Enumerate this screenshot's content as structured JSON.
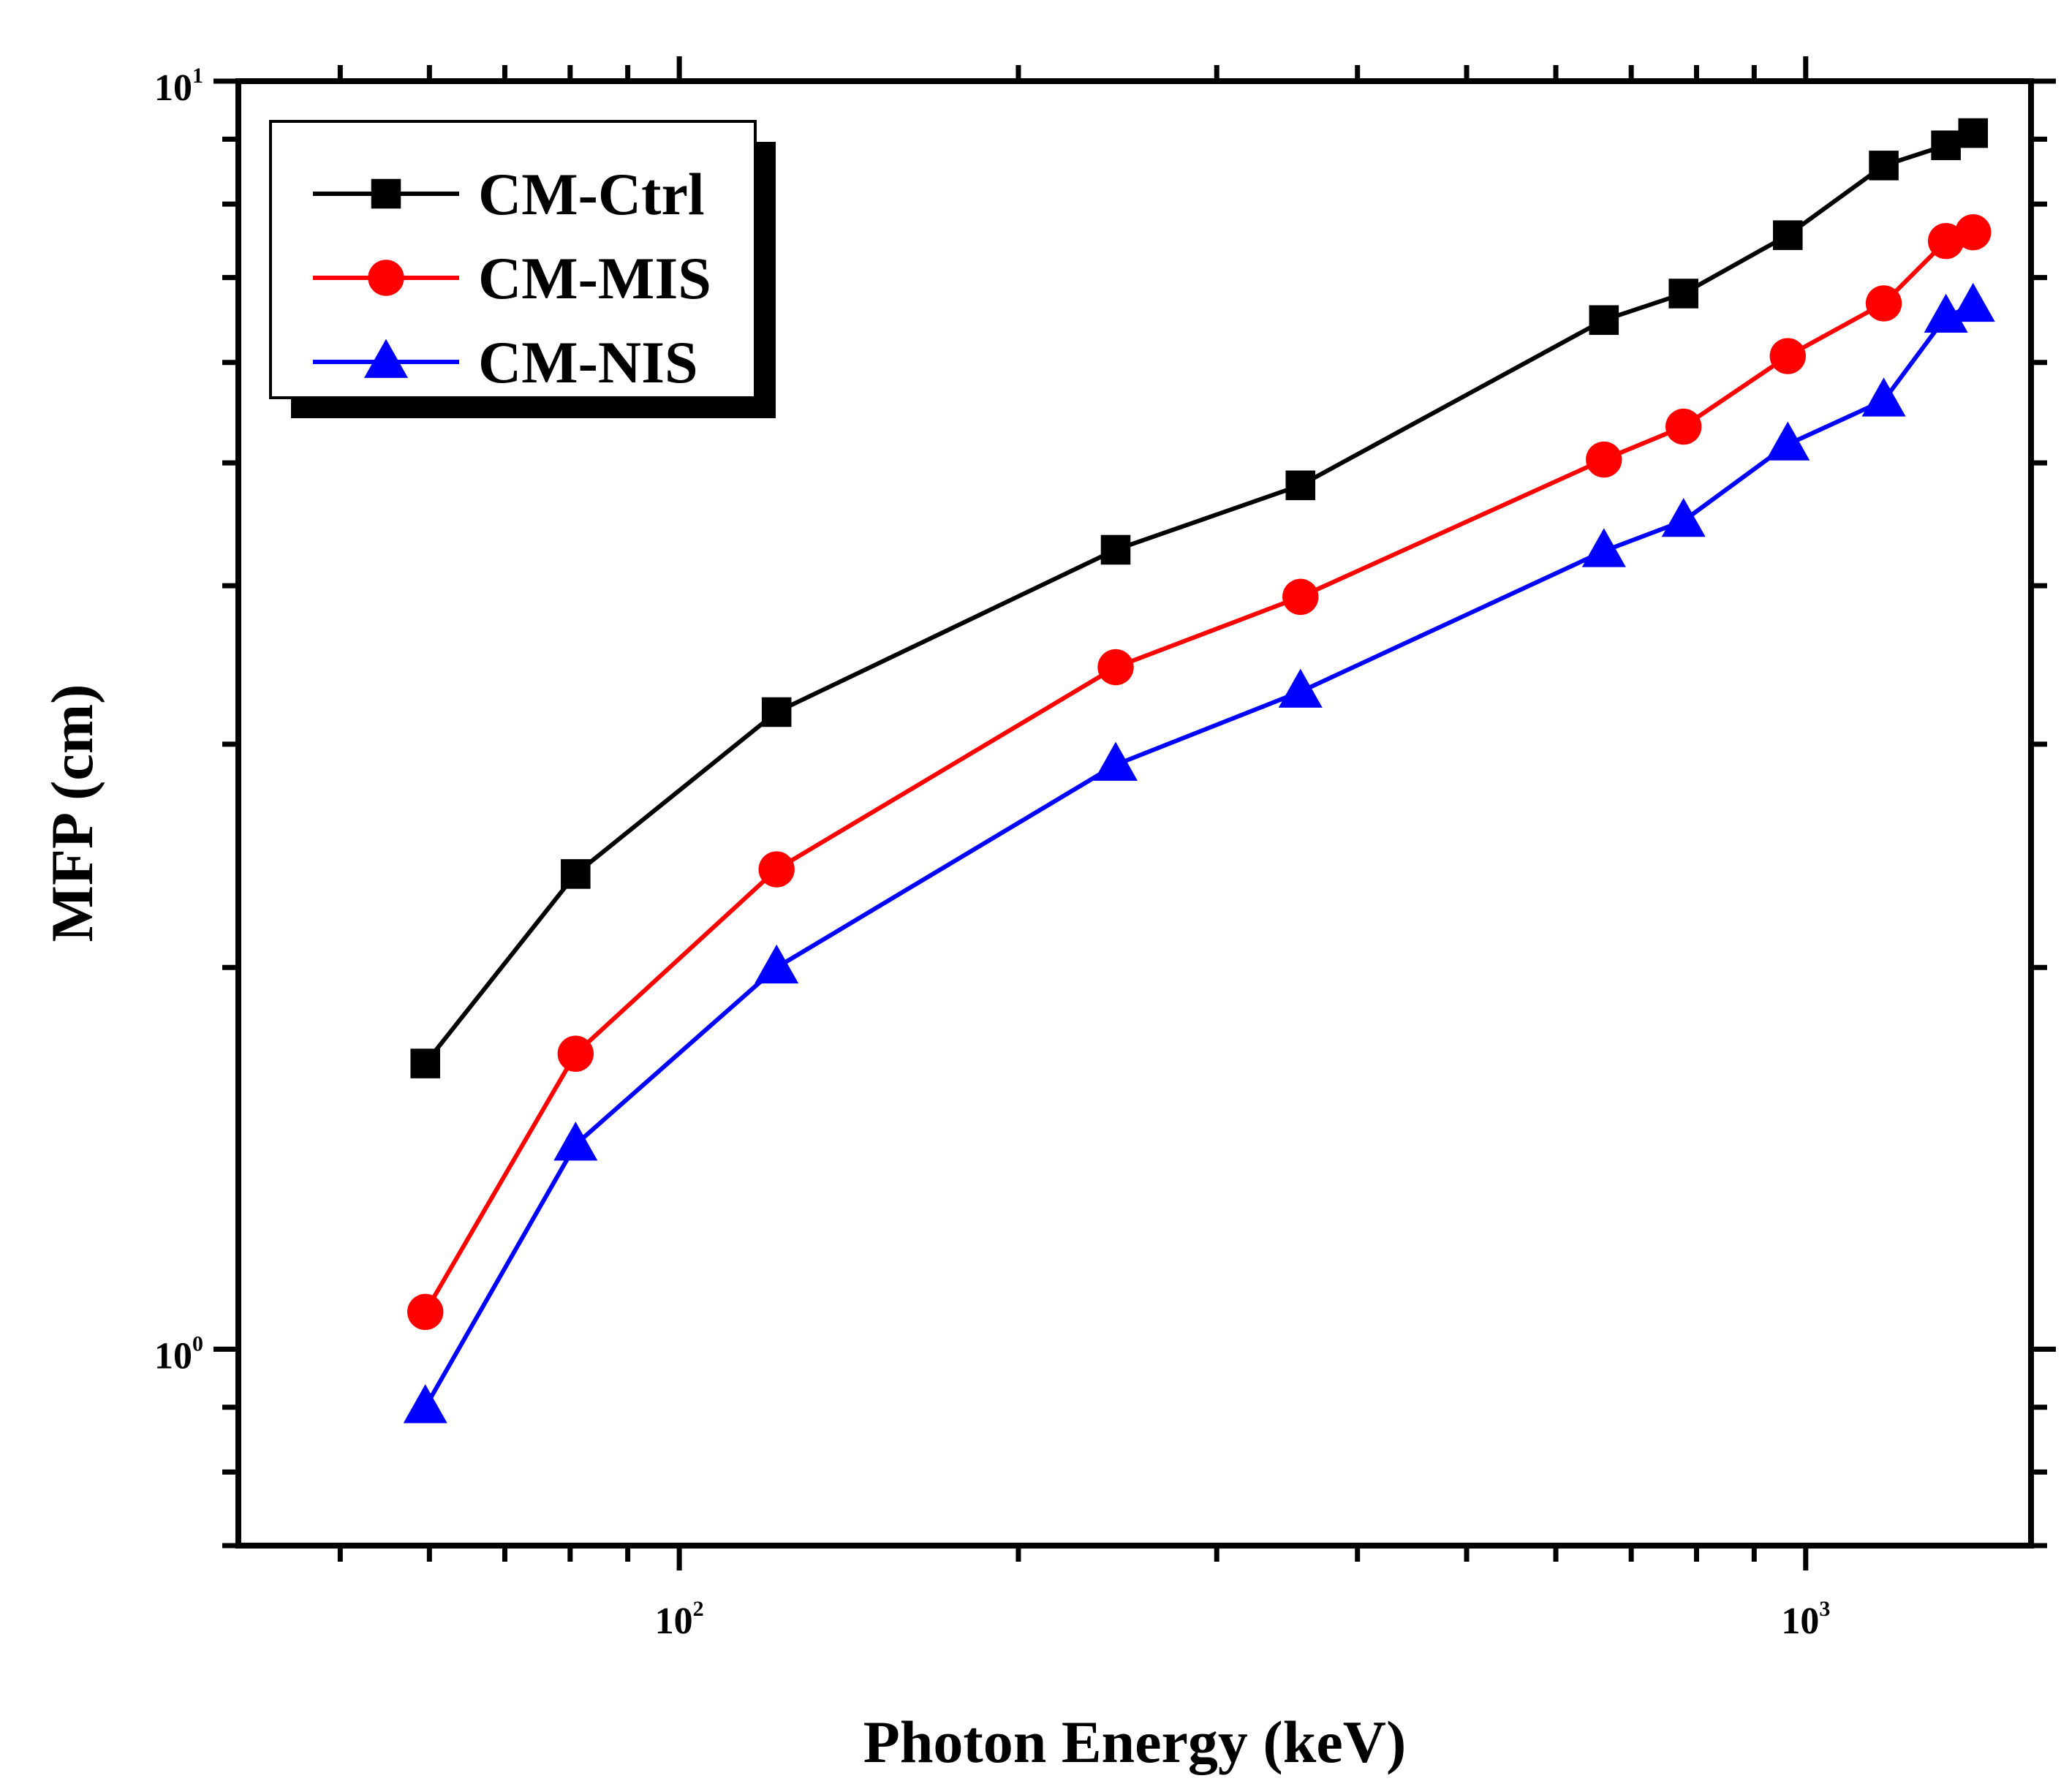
{
  "chart_data": {
    "type": "line",
    "title": "",
    "xlabel": "Photon Energy (keV)",
    "ylabel": "MFP (cm)",
    "xscale": "log",
    "yscale": "log",
    "xlim": [
      40.6,
      1585
    ],
    "ylim": [
      0.7,
      10
    ],
    "xticks": [
      {
        "base": "10",
        "exp": "2",
        "value": 100
      },
      {
        "base": "10",
        "exp": "3",
        "value": 1000
      }
    ],
    "yticks": [
      {
        "base": "10",
        "exp": "0",
        "value": 1
      },
      {
        "base": "10",
        "exp": "1",
        "value": 10
      }
    ],
    "legend_position": "top-left",
    "x": [
      59.5,
      80.9,
      122,
      244,
      356,
      662,
      779,
      964,
      1173,
      1332,
      1408
    ],
    "series": [
      {
        "name": "CM-Ctrl",
        "color": "#000000",
        "marker": "square",
        "values": [
          1.68,
          2.37,
          3.18,
          4.27,
          4.8,
          6.48,
          6.8,
          7.56,
          8.58,
          8.9,
          9.1
        ]
      },
      {
        "name": "CM-MIS",
        "color": "#ff0000",
        "marker": "circle",
        "values": [
          1.07,
          1.71,
          2.39,
          3.45,
          3.92,
          5.03,
          5.34,
          6.07,
          6.68,
          7.48,
          7.6
        ]
      },
      {
        "name": "CM-NIS",
        "color": "#0000ff",
        "marker": "triangle",
        "values": [
          0.9,
          1.45,
          2.0,
          2.89,
          3.3,
          4.26,
          4.5,
          5.17,
          5.6,
          6.52,
          6.65
        ]
      }
    ]
  }
}
